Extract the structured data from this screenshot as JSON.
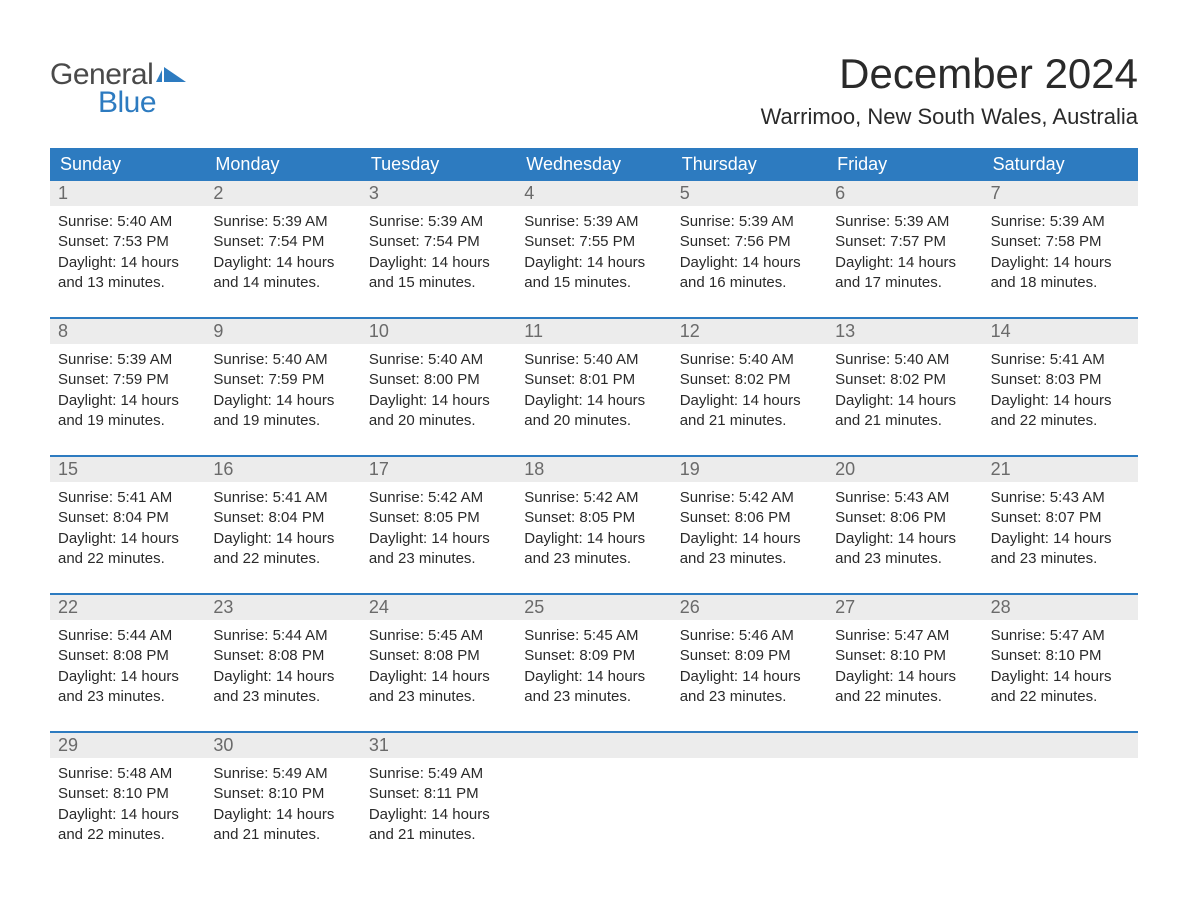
{
  "logo": {
    "text1": "General",
    "text2": "Blue",
    "icon_color": "#2d7bc0"
  },
  "title": "December 2024",
  "location": "Warrimoo, New South Wales, Australia",
  "colors": {
    "header_bg": "#2d7bc0",
    "header_text": "#ffffff",
    "daynum_bg": "#ececec",
    "daynum_text": "#6a6a6a",
    "body_text": "#2a2a2a",
    "week_divider": "#2d7bc0"
  },
  "day_headers": [
    "Sunday",
    "Monday",
    "Tuesday",
    "Wednesday",
    "Thursday",
    "Friday",
    "Saturday"
  ],
  "weeks": [
    [
      {
        "num": "1",
        "sunrise": "Sunrise: 5:40 AM",
        "sunset": "Sunset: 7:53 PM",
        "daylight1": "Daylight: 14 hours",
        "daylight2": "and 13 minutes."
      },
      {
        "num": "2",
        "sunrise": "Sunrise: 5:39 AM",
        "sunset": "Sunset: 7:54 PM",
        "daylight1": "Daylight: 14 hours",
        "daylight2": "and 14 minutes."
      },
      {
        "num": "3",
        "sunrise": "Sunrise: 5:39 AM",
        "sunset": "Sunset: 7:54 PM",
        "daylight1": "Daylight: 14 hours",
        "daylight2": "and 15 minutes."
      },
      {
        "num": "4",
        "sunrise": "Sunrise: 5:39 AM",
        "sunset": "Sunset: 7:55 PM",
        "daylight1": "Daylight: 14 hours",
        "daylight2": "and 15 minutes."
      },
      {
        "num": "5",
        "sunrise": "Sunrise: 5:39 AM",
        "sunset": "Sunset: 7:56 PM",
        "daylight1": "Daylight: 14 hours",
        "daylight2": "and 16 minutes."
      },
      {
        "num": "6",
        "sunrise": "Sunrise: 5:39 AM",
        "sunset": "Sunset: 7:57 PM",
        "daylight1": "Daylight: 14 hours",
        "daylight2": "and 17 minutes."
      },
      {
        "num": "7",
        "sunrise": "Sunrise: 5:39 AM",
        "sunset": "Sunset: 7:58 PM",
        "daylight1": "Daylight: 14 hours",
        "daylight2": "and 18 minutes."
      }
    ],
    [
      {
        "num": "8",
        "sunrise": "Sunrise: 5:39 AM",
        "sunset": "Sunset: 7:59 PM",
        "daylight1": "Daylight: 14 hours",
        "daylight2": "and 19 minutes."
      },
      {
        "num": "9",
        "sunrise": "Sunrise: 5:40 AM",
        "sunset": "Sunset: 7:59 PM",
        "daylight1": "Daylight: 14 hours",
        "daylight2": "and 19 minutes."
      },
      {
        "num": "10",
        "sunrise": "Sunrise: 5:40 AM",
        "sunset": "Sunset: 8:00 PM",
        "daylight1": "Daylight: 14 hours",
        "daylight2": "and 20 minutes."
      },
      {
        "num": "11",
        "sunrise": "Sunrise: 5:40 AM",
        "sunset": "Sunset: 8:01 PM",
        "daylight1": "Daylight: 14 hours",
        "daylight2": "and 20 minutes."
      },
      {
        "num": "12",
        "sunrise": "Sunrise: 5:40 AM",
        "sunset": "Sunset: 8:02 PM",
        "daylight1": "Daylight: 14 hours",
        "daylight2": "and 21 minutes."
      },
      {
        "num": "13",
        "sunrise": "Sunrise: 5:40 AM",
        "sunset": "Sunset: 8:02 PM",
        "daylight1": "Daylight: 14 hours",
        "daylight2": "and 21 minutes."
      },
      {
        "num": "14",
        "sunrise": "Sunrise: 5:41 AM",
        "sunset": "Sunset: 8:03 PM",
        "daylight1": "Daylight: 14 hours",
        "daylight2": "and 22 minutes."
      }
    ],
    [
      {
        "num": "15",
        "sunrise": "Sunrise: 5:41 AM",
        "sunset": "Sunset: 8:04 PM",
        "daylight1": "Daylight: 14 hours",
        "daylight2": "and 22 minutes."
      },
      {
        "num": "16",
        "sunrise": "Sunrise: 5:41 AM",
        "sunset": "Sunset: 8:04 PM",
        "daylight1": "Daylight: 14 hours",
        "daylight2": "and 22 minutes."
      },
      {
        "num": "17",
        "sunrise": "Sunrise: 5:42 AM",
        "sunset": "Sunset: 8:05 PM",
        "daylight1": "Daylight: 14 hours",
        "daylight2": "and 23 minutes."
      },
      {
        "num": "18",
        "sunrise": "Sunrise: 5:42 AM",
        "sunset": "Sunset: 8:05 PM",
        "daylight1": "Daylight: 14 hours",
        "daylight2": "and 23 minutes."
      },
      {
        "num": "19",
        "sunrise": "Sunrise: 5:42 AM",
        "sunset": "Sunset: 8:06 PM",
        "daylight1": "Daylight: 14 hours",
        "daylight2": "and 23 minutes."
      },
      {
        "num": "20",
        "sunrise": "Sunrise: 5:43 AM",
        "sunset": "Sunset: 8:06 PM",
        "daylight1": "Daylight: 14 hours",
        "daylight2": "and 23 minutes."
      },
      {
        "num": "21",
        "sunrise": "Sunrise: 5:43 AM",
        "sunset": "Sunset: 8:07 PM",
        "daylight1": "Daylight: 14 hours",
        "daylight2": "and 23 minutes."
      }
    ],
    [
      {
        "num": "22",
        "sunrise": "Sunrise: 5:44 AM",
        "sunset": "Sunset: 8:08 PM",
        "daylight1": "Daylight: 14 hours",
        "daylight2": "and 23 minutes."
      },
      {
        "num": "23",
        "sunrise": "Sunrise: 5:44 AM",
        "sunset": "Sunset: 8:08 PM",
        "daylight1": "Daylight: 14 hours",
        "daylight2": "and 23 minutes."
      },
      {
        "num": "24",
        "sunrise": "Sunrise: 5:45 AM",
        "sunset": "Sunset: 8:08 PM",
        "daylight1": "Daylight: 14 hours",
        "daylight2": "and 23 minutes."
      },
      {
        "num": "25",
        "sunrise": "Sunrise: 5:45 AM",
        "sunset": "Sunset: 8:09 PM",
        "daylight1": "Daylight: 14 hours",
        "daylight2": "and 23 minutes."
      },
      {
        "num": "26",
        "sunrise": "Sunrise: 5:46 AM",
        "sunset": "Sunset: 8:09 PM",
        "daylight1": "Daylight: 14 hours",
        "daylight2": "and 23 minutes."
      },
      {
        "num": "27",
        "sunrise": "Sunrise: 5:47 AM",
        "sunset": "Sunset: 8:10 PM",
        "daylight1": "Daylight: 14 hours",
        "daylight2": "and 22 minutes."
      },
      {
        "num": "28",
        "sunrise": "Sunrise: 5:47 AM",
        "sunset": "Sunset: 8:10 PM",
        "daylight1": "Daylight: 14 hours",
        "daylight2": "and 22 minutes."
      }
    ],
    [
      {
        "num": "29",
        "sunrise": "Sunrise: 5:48 AM",
        "sunset": "Sunset: 8:10 PM",
        "daylight1": "Daylight: 14 hours",
        "daylight2": "and 22 minutes."
      },
      {
        "num": "30",
        "sunrise": "Sunrise: 5:49 AM",
        "sunset": "Sunset: 8:10 PM",
        "daylight1": "Daylight: 14 hours",
        "daylight2": "and 21 minutes."
      },
      {
        "num": "31",
        "sunrise": "Sunrise: 5:49 AM",
        "sunset": "Sunset: 8:11 PM",
        "daylight1": "Daylight: 14 hours",
        "daylight2": "and 21 minutes."
      },
      {
        "empty": true
      },
      {
        "empty": true
      },
      {
        "empty": true
      },
      {
        "empty": true
      }
    ]
  ]
}
